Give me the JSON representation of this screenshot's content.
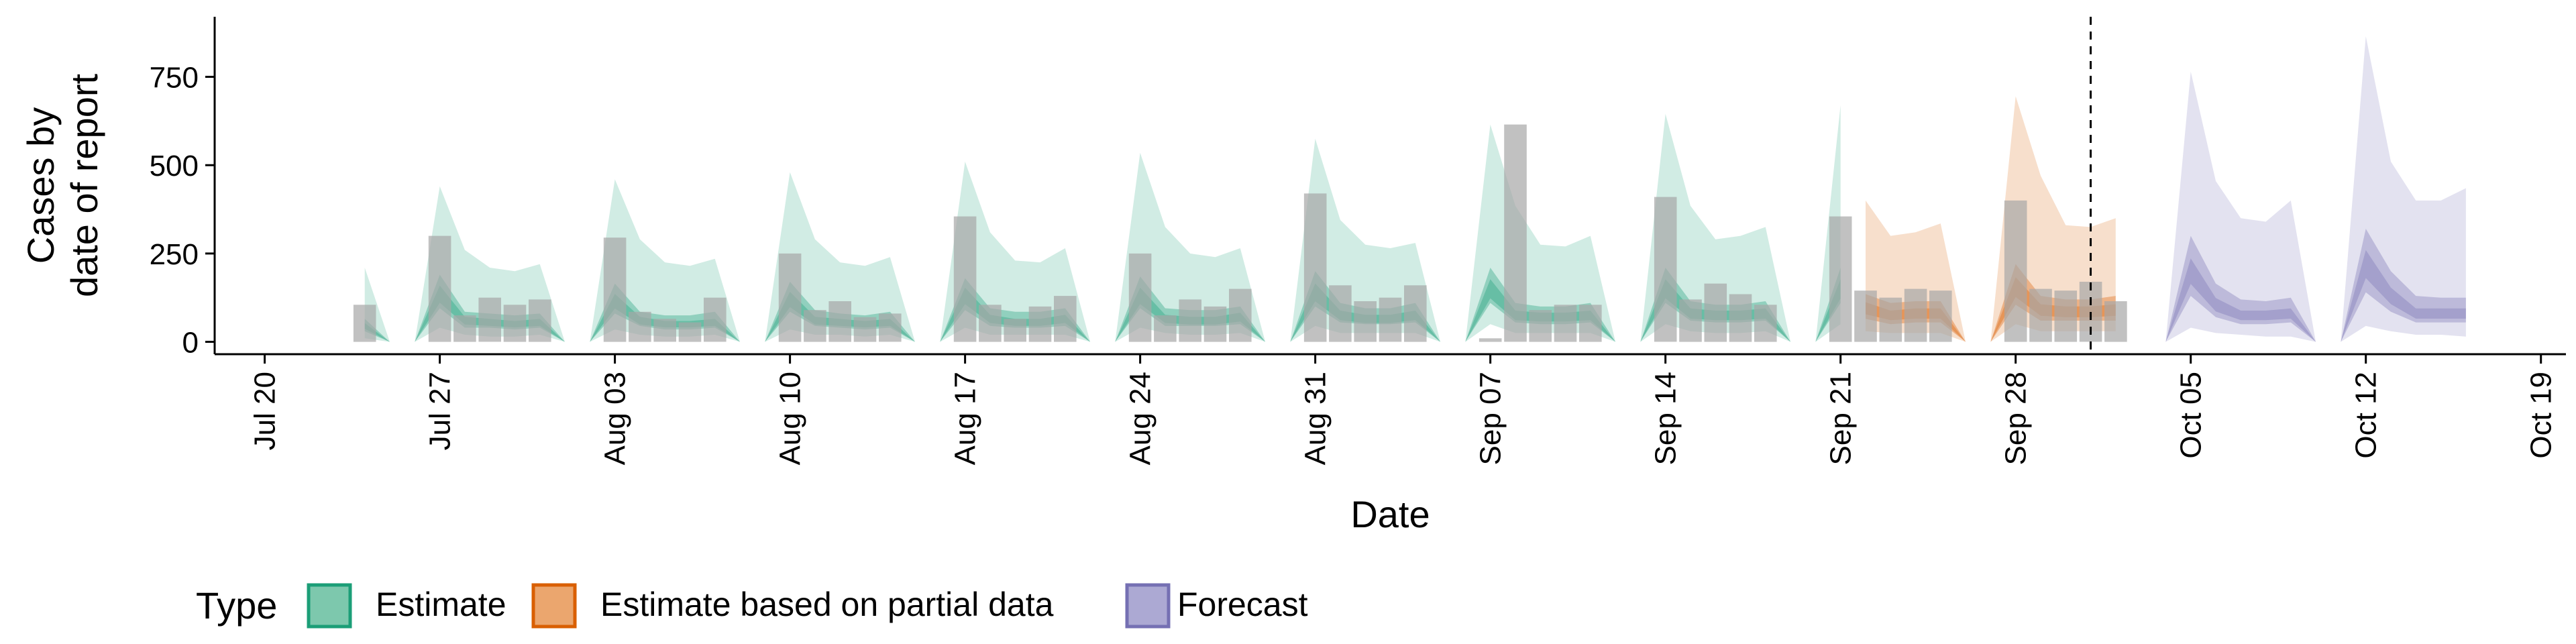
{
  "chart_data": {
    "type": "area",
    "title": "",
    "xlabel": "Date",
    "ylabel_lines": [
      "Cases by",
      "date of report"
    ],
    "ylim": [
      -35,
      920
    ],
    "xlim": [
      "2020-07-18",
      "2020-10-20"
    ],
    "y_ticks": [
      0,
      250,
      500,
      750
    ],
    "y_tick_labels": [
      "0",
      "250",
      "500",
      "750"
    ],
    "x_ticks": [
      "2020-07-20",
      "2020-07-27",
      "2020-08-03",
      "2020-08-10",
      "2020-08-17",
      "2020-08-24",
      "2020-08-31",
      "2020-09-07",
      "2020-09-14",
      "2020-09-21",
      "2020-09-28",
      "2020-10-05",
      "2020-10-12",
      "2020-10-19"
    ],
    "x_tick_labels": [
      "Jul 20",
      "Jul 27",
      "Aug 03",
      "Aug 10",
      "Aug 17",
      "Aug 24",
      "Aug 31",
      "Sep 07",
      "Sep 14",
      "Sep 21",
      "Sep 28",
      "Oct 05",
      "Oct 12",
      "Oct 19"
    ],
    "grid": false,
    "vline_date": "2020-10-01",
    "legend": {
      "title": "Type",
      "position": "bottom",
      "entries": [
        {
          "label": "Estimate",
          "fill": "#7dc8ad",
          "stroke": "#1b9e77"
        },
        {
          "label": "Estimate based on partial data",
          "fill": "#eba66e",
          "stroke": "#d95f02"
        },
        {
          "label": "Forecast",
          "fill": "#aca9d3",
          "stroke": "#7570b3"
        }
      ]
    },
    "bars": {
      "color": "#a6a6a6",
      "dates": [
        "2020-07-24",
        "2020-07-25",
        "2020-07-26",
        "2020-07-27",
        "2020-07-28",
        "2020-07-29",
        "2020-07-30",
        "2020-07-31",
        "2020-08-01",
        "2020-08-02",
        "2020-08-03",
        "2020-08-04",
        "2020-08-05",
        "2020-08-06",
        "2020-08-07",
        "2020-08-08",
        "2020-08-09",
        "2020-08-10",
        "2020-08-11",
        "2020-08-12",
        "2020-08-13",
        "2020-08-14",
        "2020-08-15",
        "2020-08-16",
        "2020-08-17",
        "2020-08-18",
        "2020-08-19",
        "2020-08-20",
        "2020-08-21",
        "2020-08-22",
        "2020-08-23",
        "2020-08-24",
        "2020-08-25",
        "2020-08-26",
        "2020-08-27",
        "2020-08-28",
        "2020-08-29",
        "2020-08-30",
        "2020-08-31",
        "2020-09-01",
        "2020-09-02",
        "2020-09-03",
        "2020-09-04",
        "2020-09-05",
        "2020-09-06",
        "2020-09-07",
        "2020-09-08",
        "2020-09-09",
        "2020-09-10",
        "2020-09-11",
        "2020-09-12",
        "2020-09-13",
        "2020-09-14",
        "2020-09-15",
        "2020-09-16",
        "2020-09-17",
        "2020-09-18",
        "2020-09-19",
        "2020-09-20",
        "2020-09-21",
        "2020-09-22",
        "2020-09-23",
        "2020-09-24",
        "2020-09-25",
        "2020-09-26",
        "2020-09-27",
        "2020-09-28",
        "2020-09-29",
        "2020-09-30",
        "2020-10-01",
        "2020-10-02"
      ],
      "values": [
        105,
        0,
        0,
        300,
        75,
        125,
        105,
        120,
        0,
        0,
        295,
        85,
        65,
        55,
        125,
        0,
        0,
        250,
        90,
        115,
        70,
        80,
        0,
        0,
        355,
        105,
        65,
        100,
        130,
        0,
        0,
        250,
        75,
        120,
        100,
        150,
        0,
        0,
        420,
        160,
        115,
        125,
        160,
        0,
        0,
        10,
        615,
        90,
        105,
        105,
        0,
        0,
        410,
        120,
        165,
        135,
        105,
        0,
        0,
        355,
        145,
        125,
        150,
        145,
        0,
        0,
        400,
        150,
        145,
        170,
        115
      ]
    },
    "series": [
      {
        "name": "Estimate",
        "fill": "#1b9e77",
        "dates": [
          "2020-07-24",
          "2020-07-25",
          "2020-07-26",
          "2020-07-27",
          "2020-07-28",
          "2020-07-29",
          "2020-07-30",
          "2020-07-31",
          "2020-08-01",
          "2020-08-02",
          "2020-08-03",
          "2020-08-04",
          "2020-08-05",
          "2020-08-06",
          "2020-08-07",
          "2020-08-08",
          "2020-08-09",
          "2020-08-10",
          "2020-08-11",
          "2020-08-12",
          "2020-08-13",
          "2020-08-14",
          "2020-08-15",
          "2020-08-16",
          "2020-08-17",
          "2020-08-18",
          "2020-08-19",
          "2020-08-20",
          "2020-08-21",
          "2020-08-22",
          "2020-08-23",
          "2020-08-24",
          "2020-08-25",
          "2020-08-26",
          "2020-08-27",
          "2020-08-28",
          "2020-08-29",
          "2020-08-30",
          "2020-08-31",
          "2020-09-01",
          "2020-09-02",
          "2020-09-03",
          "2020-09-04",
          "2020-09-05",
          "2020-09-06",
          "2020-09-07",
          "2020-09-08",
          "2020-09-09",
          "2020-09-10",
          "2020-09-11",
          "2020-09-12",
          "2020-09-13",
          "2020-09-14",
          "2020-09-15",
          "2020-09-16",
          "2020-09-17",
          "2020-09-18",
          "2020-09-19",
          "2020-09-20",
          "2020-09-21"
        ],
        "median": [
          45,
          0,
          0,
          135,
          60,
          55,
          50,
          55,
          0,
          0,
          115,
          60,
          50,
          50,
          55,
          0,
          0,
          120,
          60,
          55,
          50,
          55,
          0,
          0,
          130,
          65,
          55,
          55,
          65,
          0,
          0,
          130,
          65,
          60,
          60,
          70,
          0,
          0,
          140,
          75,
          65,
          65,
          75,
          0,
          0,
          150,
          75,
          70,
          70,
          75,
          0,
          0,
          150,
          80,
          75,
          75,
          80,
          0,
          0,
          150
        ],
        "lower_50": [
          30,
          0,
          0,
          95,
          40,
          40,
          35,
          40,
          0,
          0,
          80,
          45,
          35,
          35,
          40,
          0,
          0,
          85,
          45,
          40,
          35,
          40,
          0,
          0,
          90,
          45,
          40,
          40,
          45,
          0,
          0,
          95,
          45,
          45,
          45,
          50,
          0,
          0,
          100,
          55,
          50,
          50,
          55,
          0,
          0,
          110,
          55,
          50,
          50,
          55,
          0,
          0,
          110,
          60,
          55,
          55,
          60,
          0,
          0,
          110
        ],
        "upper_50": [
          65,
          0,
          0,
          190,
          85,
          80,
          75,
          80,
          0,
          0,
          165,
          85,
          75,
          75,
          85,
          0,
          0,
          170,
          90,
          80,
          75,
          85,
          0,
          0,
          180,
          95,
          85,
          85,
          95,
          0,
          0,
          185,
          95,
          90,
          90,
          100,
          0,
          0,
          200,
          110,
          95,
          95,
          110,
          0,
          0,
          210,
          110,
          100,
          100,
          110,
          0,
          0,
          210,
          115,
          105,
          105,
          115,
          0,
          0,
          210
        ],
        "lower_90": [
          10,
          0,
          0,
          40,
          20,
          15,
          15,
          20,
          0,
          0,
          35,
          20,
          15,
          15,
          20,
          0,
          0,
          35,
          20,
          20,
          15,
          20,
          0,
          0,
          40,
          20,
          20,
          20,
          20,
          0,
          0,
          40,
          25,
          20,
          20,
          25,
          0,
          0,
          45,
          25,
          25,
          25,
          25,
          0,
          0,
          50,
          25,
          25,
          25,
          25,
          0,
          0,
          50,
          30,
          25,
          25,
          30,
          0,
          0,
          50
        ],
        "upper_90": [
          210,
          0,
          0,
          440,
          260,
          210,
          200,
          220,
          0,
          0,
          460,
          290,
          225,
          215,
          235,
          0,
          0,
          480,
          290,
          225,
          215,
          240,
          0,
          0,
          510,
          310,
          230,
          225,
          265,
          0,
          0,
          535,
          325,
          250,
          240,
          265,
          0,
          0,
          575,
          345,
          275,
          265,
          280,
          0,
          0,
          615,
          385,
          275,
          270,
          300,
          0,
          0,
          645,
          385,
          290,
          300,
          325,
          0,
          0,
          670
        ]
      },
      {
        "name": "Estimate based on partial data",
        "fill": "#d95f02",
        "dates": [
          "2020-09-22",
          "2020-09-23",
          "2020-09-24",
          "2020-09-25",
          "2020-09-26",
          "2020-09-27",
          "2020-09-28",
          "2020-09-29",
          "2020-09-30",
          "2020-10-01",
          "2020-10-02"
        ],
        "median": [
          95,
          75,
          80,
          80,
          0,
          0,
          155,
          90,
          85,
          85,
          90
        ],
        "lower_50": [
          65,
          50,
          55,
          55,
          0,
          0,
          105,
          60,
          60,
          60,
          60
        ],
        "upper_50": [
          135,
          110,
          115,
          115,
          0,
          0,
          220,
          130,
          120,
          120,
          130
        ],
        "lower_90": [
          30,
          25,
          25,
          25,
          0,
          0,
          50,
          30,
          30,
          30,
          30
        ],
        "upper_90": [
          400,
          300,
          310,
          335,
          0,
          0,
          695,
          470,
          330,
          325,
          350
        ]
      },
      {
        "name": "Forecast",
        "fill": "#7570b3",
        "dates": [
          "2020-10-03",
          "2020-10-04",
          "2020-10-05",
          "2020-10-06",
          "2020-10-07",
          "2020-10-08",
          "2020-10-09",
          "2020-10-10",
          "2020-10-11",
          "2020-10-12",
          "2020-10-13",
          "2020-10-14",
          "2020-10-15",
          "2020-10-16"
        ],
        "median": [
          0,
          0,
          200,
          105,
          75,
          75,
          80,
          0,
          0,
          220,
          130,
          80,
          80,
          80
        ],
        "lower_50": [
          0,
          0,
          130,
          70,
          50,
          50,
          55,
          0,
          0,
          140,
          85,
          55,
          55,
          55
        ],
        "upper_50": [
          0,
          0,
          300,
          165,
          120,
          115,
          125,
          0,
          0,
          320,
          200,
          130,
          125,
          125
        ],
        "lower_90": [
          0,
          0,
          40,
          25,
          20,
          15,
          15,
          0,
          0,
          45,
          30,
          20,
          20,
          15
        ],
        "upper_90": [
          0,
          0,
          765,
          455,
          350,
          340,
          400,
          0,
          0,
          865,
          510,
          400,
          400,
          435
        ]
      }
    ]
  }
}
